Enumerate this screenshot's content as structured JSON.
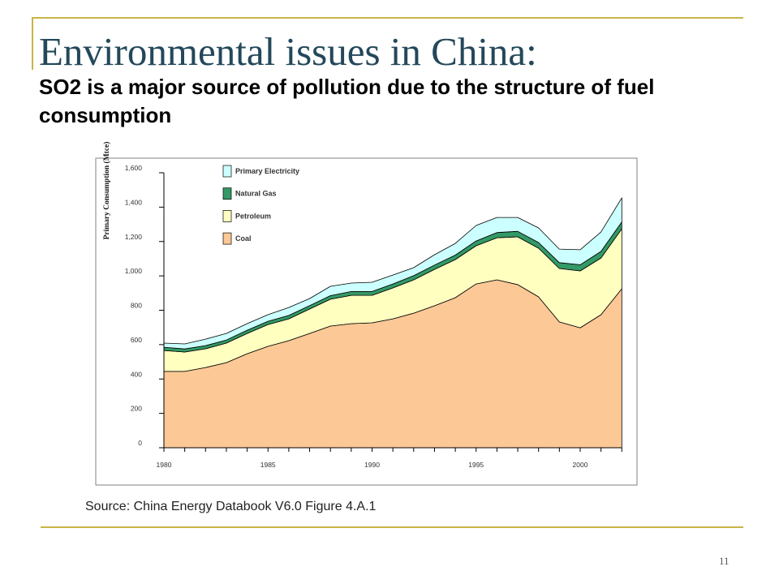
{
  "slide": {
    "title": "Environmental issues in China:",
    "subtitle": "SO2 is a major source of pollution due to the structure of fuel consumption",
    "source": "Source: China Energy Databook V6.0 Figure 4.A.1",
    "page_number": "11",
    "colors": {
      "title": "#23485a",
      "rule": "#c9b447",
      "text": "#000000"
    }
  },
  "chart_data": {
    "type": "area",
    "stacked": true,
    "title": "",
    "xlabel": "",
    "ylabel": "Primary Consumption (Mtce)",
    "x": [
      1980,
      1981,
      1982,
      1983,
      1984,
      1985,
      1986,
      1987,
      1988,
      1989,
      1990,
      1991,
      1992,
      1993,
      1994,
      1995,
      1996,
      1997,
      1998,
      1999,
      2000,
      2001,
      2002
    ],
    "xlim": [
      1980,
      2002
    ],
    "ylim": [
      0,
      1600
    ],
    "xticks": [
      1980,
      1985,
      1990,
      1995,
      2000
    ],
    "xtick_labels": [
      "1980",
      "1985",
      "1990",
      "1995",
      "2000"
    ],
    "yticks": [
      0,
      200,
      400,
      600,
      800,
      1000,
      1200,
      1400,
      1600
    ],
    "ytick_labels": [
      "0",
      "200",
      "400",
      "600",
      "800",
      "1,000",
      "1,200",
      "1,400",
      "1,600"
    ],
    "grid": false,
    "legend": "top-left",
    "series": [
      {
        "name": "Coal",
        "color": "#fcc896",
        "values": [
          444,
          444,
          467,
          495,
          547,
          590,
          623,
          665,
          708,
          722,
          727,
          750,
          783,
          826,
          873,
          953,
          977,
          949,
          878,
          732,
          698,
          774,
          925
        ]
      },
      {
        "name": "Petroleum",
        "color": "#ffffc0",
        "values": [
          122,
          113,
          109,
          114,
          118,
          127,
          127,
          142,
          156,
          165,
          160,
          180,
          194,
          212,
          222,
          222,
          245,
          278,
          283,
          311,
          331,
          330,
          349
        ]
      },
      {
        "name": "Natural Gas",
        "color": "#339966",
        "values": [
          19,
          18,
          18,
          18,
          19,
          19,
          20,
          20,
          21,
          22,
          22,
          23,
          24,
          25,
          26,
          28,
          30,
          32,
          33,
          34,
          36,
          38,
          40
        ]
      },
      {
        "name": "Primary Electricity",
        "color": "#ccffff",
        "values": [
          24,
          29,
          38,
          38,
          38,
          38,
          46,
          41,
          54,
          49,
          54,
          52,
          47,
          60,
          68,
          90,
          88,
          81,
          85,
          79,
          87,
          113,
          140
        ]
      }
    ]
  }
}
